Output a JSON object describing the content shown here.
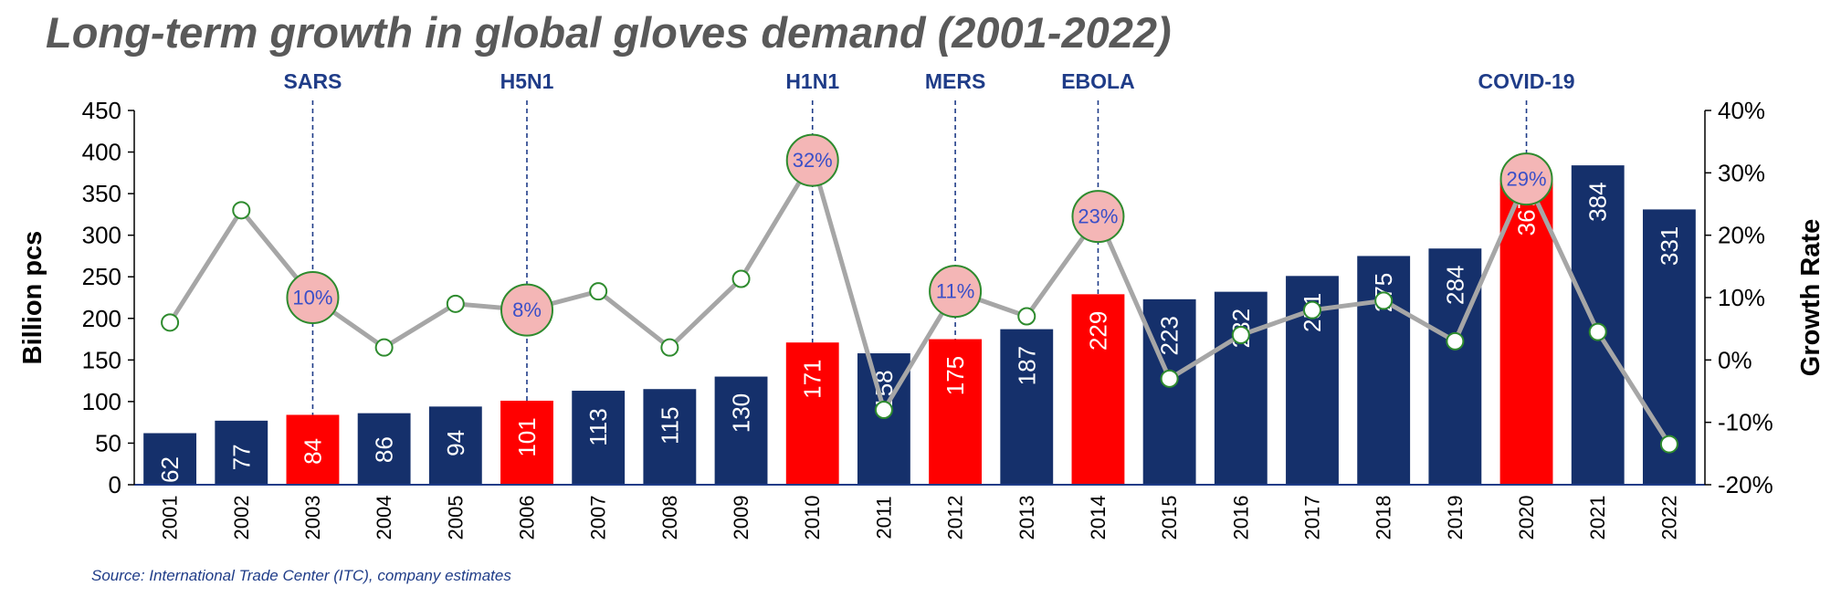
{
  "title": "Long-term growth in global gloves demand (2001-2022)",
  "source": "Source: International Trade Center (ITC), company estimates",
  "chart_data": {
    "type": "bar",
    "title": "Long-term growth in global gloves demand (2001-2022)",
    "categories": [
      "2001",
      "2002",
      "2003",
      "2004",
      "2005",
      "2006",
      "2007",
      "2008",
      "2009",
      "2010",
      "2011",
      "2012",
      "2013",
      "2014",
      "2015",
      "2016",
      "2017",
      "2018",
      "2019",
      "2020",
      "2021",
      "2022"
    ],
    "series": [
      {
        "values": [
          62,
          77,
          84,
          86,
          94,
          101,
          113,
          115,
          130,
          171,
          158,
          175,
          187,
          229,
          223,
          232,
          251,
          275,
          284,
          367,
          384,
          331
        ]
      },
      {
        "values": [
          6,
          24,
          10,
          2,
          9,
          8,
          11,
          2,
          13,
          32,
          -8,
          11,
          7,
          23,
          -3,
          4,
          8,
          9.5,
          3,
          29,
          4.5,
          -13.5
        ]
      }
    ],
    "highlighted_years": [
      "2003",
      "2006",
      "2010",
      "2012",
      "2014",
      "2020"
    ],
    "labeled_rates": [
      {
        "year": "2003",
        "label": "10%"
      },
      {
        "year": "2006",
        "label": "8%"
      },
      {
        "year": "2010",
        "label": "32%"
      },
      {
        "year": "2012",
        "label": "11%"
      },
      {
        "year": "2014",
        "label": "23%"
      },
      {
        "year": "2020",
        "label": "29%"
      }
    ],
    "events": [
      {
        "name": "SARS",
        "year": "2003"
      },
      {
        "name": "H5N1",
        "year": "2006"
      },
      {
        "name": "H1N1",
        "year": "2010"
      },
      {
        "name": "MERS",
        "year": "2012"
      },
      {
        "name": "EBOLA",
        "year": "2014"
      },
      {
        "name": "COVID-19",
        "year": "2020"
      }
    ],
    "ylabel": "Billion pcs",
    "y2label": "Growth Rate",
    "ylim": [
      0,
      450
    ],
    "y2lim": [
      -20,
      40
    ],
    "yticks": [
      0,
      50,
      100,
      150,
      200,
      250,
      300,
      350,
      400,
      450
    ],
    "y2ticks": [
      "-20%",
      "-10%",
      "0%",
      "10%",
      "20%",
      "30%",
      "40%"
    ],
    "grid": false,
    "colors": {
      "bar": "#15306b",
      "highlight_bar": "#ff0000",
      "line": "#a6a6a6",
      "marker_edge": "#2e8b2e",
      "bubble_fill": "#f4b6b6",
      "event_text": "#1f3c88",
      "rate_text": "#3a4fc8"
    }
  }
}
